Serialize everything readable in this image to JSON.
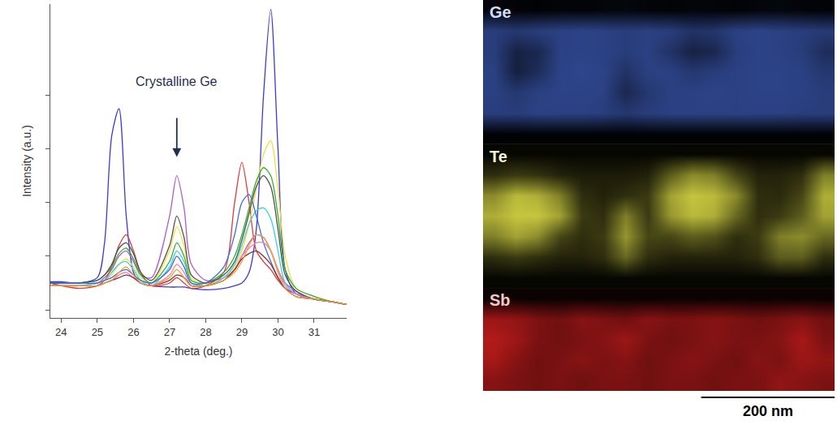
{
  "chart_data": [
    {
      "type": "line",
      "x_label": "2-theta (deg.)",
      "y_label": "Intensity (a.u.)",
      "x": [
        23.7,
        24,
        24.5,
        25,
        25.2,
        25.4,
        25.6,
        25.8,
        26,
        26.2,
        26.5,
        27,
        27.2,
        27.4,
        27.6,
        28,
        28.5,
        28.8,
        29,
        29.2,
        29.4,
        29.6,
        29.8,
        30,
        30.2,
        30.5,
        31,
        31.5,
        31.9
      ],
      "series": [
        {
          "color": "#3b3bd9",
          "values": [
            10.5,
            10.5,
            10,
            12,
            25,
            65,
            75,
            35,
            14,
            10,
            9,
            8.5,
            8.5,
            8.5,
            8,
            7.5,
            8,
            9,
            10,
            14,
            30,
            80,
            112,
            60,
            15,
            6,
            4,
            3,
            2
          ]
        },
        {
          "color": "#b05cc8",
          "values": [
            9,
            9,
            9,
            10,
            12,
            15,
            20,
            22,
            18,
            13,
            12,
            35,
            50,
            38,
            17,
            11,
            12,
            15,
            20,
            25,
            28,
            27,
            22,
            15,
            10,
            7,
            4,
            3,
            2
          ]
        },
        {
          "color": "#e03a3a",
          "values": [
            10,
            9,
            8,
            9,
            11,
            16,
            24,
            28,
            22,
            14,
            9,
            10,
            12,
            10,
            8,
            9,
            14,
            40,
            55,
            40,
            22,
            18,
            15,
            11,
            8,
            6,
            4,
            3,
            2
          ]
        },
        {
          "color": "#f0e040",
          "values": [
            9,
            9,
            9,
            10,
            11,
            13,
            17,
            19,
            16,
            12,
            10,
            22,
            31,
            24,
            12,
            9,
            12,
            16,
            22,
            32,
            45,
            58,
            63,
            45,
            20,
            8,
            5,
            3,
            2
          ]
        },
        {
          "color": "#30b030",
          "values": [
            10,
            10,
            10,
            11,
            13,
            16,
            21,
            23,
            19,
            13,
            10,
            18,
            25,
            20,
            11,
            10,
            14,
            20,
            28,
            38,
            48,
            53,
            50,
            35,
            15,
            8,
            5,
            3,
            2
          ]
        },
        {
          "color": "#505050",
          "values": [
            10,
            10,
            10,
            11,
            13,
            17,
            23,
            25,
            21,
            14,
            11,
            24,
            35,
            27,
            13,
            10,
            13,
            18,
            26,
            36,
            46,
            50,
            46,
            30,
            13,
            7,
            4,
            3,
            2
          ]
        },
        {
          "color": "#40d0e0",
          "values": [
            9,
            9,
            9,
            10,
            11,
            14,
            17,
            18,
            15,
            11,
            9,
            16,
            22,
            18,
            10,
            9,
            12,
            17,
            24,
            32,
            37,
            38,
            34,
            22,
            10,
            6,
            4,
            3,
            2
          ]
        },
        {
          "color": "#4169e1",
          "values": [
            10,
            10,
            10,
            10,
            11,
            12,
            14,
            15,
            13,
            11,
            10,
            15,
            20,
            16,
            10,
            10,
            16,
            28,
            40,
            43,
            35,
            25,
            18,
            12,
            8,
            6,
            4,
            3,
            2
          ]
        },
        {
          "color": "#f080b0",
          "values": [
            9,
            9,
            9,
            9,
            10,
            11,
            13,
            14,
            12,
            10,
            9,
            13,
            17,
            14,
            9,
            9,
            11,
            15,
            20,
            23,
            25,
            25,
            22,
            15,
            9,
            6,
            4,
            3,
            2
          ]
        },
        {
          "color": "#8b3030",
          "values": [
            9,
            9,
            9,
            9,
            10,
            11,
            12,
            13,
            12,
            10,
            9,
            11,
            13,
            12,
            9,
            9,
            11,
            15,
            19,
            21,
            22,
            20,
            17,
            12,
            8,
            5,
            4,
            3,
            2
          ]
        },
        {
          "color": "#f0a030",
          "values": [
            9,
            9,
            9,
            9,
            10,
            11,
            14,
            16,
            13,
            10,
            9,
            12,
            15,
            12,
            9,
            9,
            11,
            14,
            18,
            24,
            28,
            27,
            22,
            14,
            8,
            5,
            4,
            3,
            2
          ]
        }
      ],
      "xlim": [
        23.7,
        31.9
      ],
      "xticks": [
        24,
        25,
        26,
        27,
        28,
        29,
        30,
        31
      ],
      "ylim": [
        -3,
        114
      ],
      "yticks": [
        0,
        20,
        40,
        60,
        80
      ],
      "tick_labels": "x",
      "annotations": [
        {
          "text": "Crystalline Ge",
          "x": 27.2,
          "y": 85,
          "arrow_y": [
            72,
            57
          ]
        }
      ]
    },
    {
      "type": "heatmap",
      "tick_labels": false,
      "xlim": [
        0,
        527
      ],
      "scale_bar": {
        "label": "200 nm",
        "length": 200
      },
      "maps": [
        {
          "label": "Ge",
          "color": "#4a6fe0",
          "zlim": [
            0,
            100
          ],
          "z": [
            [
              5,
              3,
              2,
              4,
              3,
              5,
              6,
              4,
              3,
              5,
              4,
              3,
              5,
              6,
              4,
              3
            ],
            [
              55,
              50,
              55,
              58,
              60,
              58,
              55,
              58,
              55,
              45,
              48,
              58,
              60,
              58,
              55,
              52
            ],
            [
              55,
              30,
              35,
              58,
              60,
              58,
              55,
              58,
              45,
              30,
              35,
              55,
              60,
              58,
              55,
              40
            ],
            [
              58,
              28,
              40,
              60,
              62,
              60,
              45,
              58,
              58,
              50,
              55,
              58,
              60,
              60,
              58,
              50
            ],
            [
              58,
              50,
              58,
              60,
              60,
              58,
              35,
              50,
              58,
              58,
              60,
              58,
              60,
              60,
              58,
              55
            ],
            [
              55,
              55,
              58,
              58,
              58,
              55,
              50,
              55,
              58,
              58,
              58,
              58,
              58,
              58,
              55,
              55
            ],
            [
              2,
              2,
              2,
              2,
              2,
              2,
              2,
              2,
              2,
              2,
              2,
              2,
              2,
              2,
              2,
              2
            ]
          ]
        },
        {
          "label": "Te",
          "color": "#e8e84a",
          "zlim": [
            0,
            100
          ],
          "z": [
            [
              3,
              3,
              3,
              3,
              3,
              3,
              3,
              3,
              3,
              3,
              3,
              3,
              3,
              3,
              3,
              3
            ],
            [
              20,
              25,
              22,
              15,
              12,
              12,
              12,
              15,
              40,
              60,
              55,
              30,
              15,
              15,
              20,
              55
            ],
            [
              60,
              80,
              75,
              55,
              20,
              15,
              20,
              25,
              70,
              85,
              80,
              60,
              20,
              18,
              30,
              75
            ],
            [
              75,
              85,
              85,
              70,
              25,
              20,
              55,
              25,
              65,
              80,
              75,
              45,
              20,
              25,
              40,
              70
            ],
            [
              55,
              70,
              60,
              30,
              20,
              25,
              65,
              30,
              30,
              40,
              35,
              20,
              25,
              55,
              60,
              45
            ],
            [
              20,
              25,
              20,
              15,
              15,
              20,
              45,
              20,
              15,
              15,
              15,
              15,
              20,
              40,
              40,
              20
            ],
            [
              3,
              3,
              3,
              3,
              3,
              3,
              3,
              3,
              3,
              3,
              3,
              3,
              3,
              3,
              3,
              3
            ]
          ]
        },
        {
          "label": "Sb",
          "color": "#e02020",
          "zlim": [
            0,
            100
          ],
          "z": [
            [
              5,
              5,
              5,
              5,
              5,
              5,
              5,
              5,
              5,
              5,
              5,
              5,
              5,
              5,
              5,
              5
            ],
            [
              70,
              65,
              55,
              50,
              60,
              55,
              50,
              60,
              55,
              55,
              60,
              55,
              50,
              55,
              60,
              50
            ],
            [
              80,
              70,
              55,
              50,
              55,
              60,
              70,
              55,
              50,
              55,
              60,
              55,
              55,
              60,
              75,
              55
            ],
            [
              75,
              60,
              50,
              55,
              60,
              55,
              60,
              50,
              55,
              60,
              55,
              50,
              60,
              55,
              70,
              65
            ],
            [
              60,
              55,
              50,
              55,
              50,
              55,
              55,
              50,
              55,
              55,
              50,
              55,
              55,
              65,
              60,
              55
            ]
          ]
        }
      ]
    }
  ]
}
